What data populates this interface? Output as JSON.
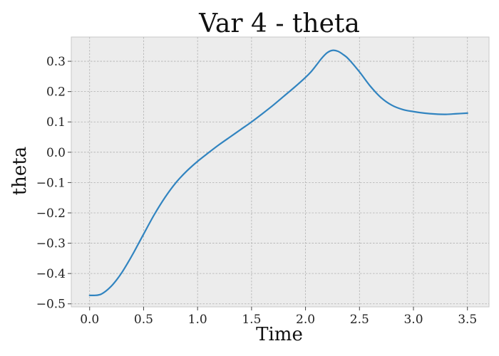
{
  "chart_data": {
    "type": "line",
    "title": "Var 4 - theta",
    "xlabel": "Time",
    "ylabel": "theta",
    "xlim": [
      -0.17,
      3.7
    ],
    "ylim": [
      -0.51,
      0.38
    ],
    "grid": true,
    "x_ticks": [
      0.0,
      0.5,
      1.0,
      1.5,
      2.0,
      2.5,
      3.0,
      3.5
    ],
    "x_tick_labels": [
      "0.0",
      "0.5",
      "1.0",
      "1.5",
      "2.0",
      "2.5",
      "3.0",
      "3.5"
    ],
    "y_ticks": [
      -0.5,
      -0.4,
      -0.3,
      -0.2,
      -0.1,
      0.0,
      0.1,
      0.2,
      0.3
    ],
    "y_tick_labels": [
      "−0.5",
      "−0.4",
      "−0.3",
      "−0.2",
      "−0.1",
      "0.0",
      "0.1",
      "0.2",
      "0.3"
    ],
    "series": [
      {
        "name": "theta",
        "color": "#3184c0",
        "x": [
          0.0,
          0.05,
          0.1,
          0.15,
          0.2,
          0.25,
          0.3,
          0.35,
          0.4,
          0.45,
          0.5,
          0.6,
          0.7,
          0.8,
          0.9,
          1.0,
          1.1,
          1.2,
          1.3,
          1.4,
          1.5,
          1.6,
          1.7,
          1.8,
          1.9,
          2.0,
          2.05,
          2.1,
          2.15,
          2.2,
          2.25,
          2.3,
          2.35,
          2.4,
          2.5,
          2.6,
          2.7,
          2.8,
          2.9,
          3.0,
          3.1,
          3.2,
          3.3,
          3.4,
          3.5
        ],
        "y": [
          -0.472,
          -0.472,
          -0.469,
          -0.458,
          -0.442,
          -0.421,
          -0.396,
          -0.367,
          -0.336,
          -0.303,
          -0.27,
          -0.205,
          -0.148,
          -0.1,
          -0.062,
          -0.03,
          -0.002,
          0.025,
          0.05,
          0.075,
          0.1,
          0.127,
          0.155,
          0.185,
          0.215,
          0.247,
          0.265,
          0.287,
          0.31,
          0.328,
          0.336,
          0.333,
          0.322,
          0.307,
          0.265,
          0.218,
          0.18,
          0.155,
          0.141,
          0.134,
          0.129,
          0.126,
          0.125,
          0.127,
          0.129
        ]
      }
    ]
  }
}
